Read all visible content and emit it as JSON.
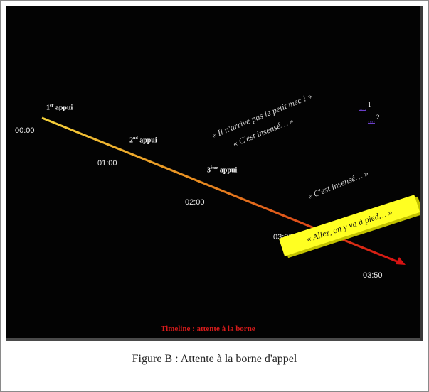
{
  "slide": {
    "background_color": "#030303",
    "timeline": {
      "start_color": "#f4d13a",
      "end_color": "#d61212",
      "times": [
        "00:00",
        "01:00",
        "02:00",
        "03:00",
        "03:50"
      ]
    },
    "appuis": [
      {
        "num": "1",
        "sup": "er",
        "text": " appui"
      },
      {
        "num": "2",
        "sup": "nd",
        "text": " appui"
      },
      {
        "num": "3",
        "sup": "ème",
        "text": " appui"
      }
    ],
    "quotes": [
      "« Il n'arrive pas le petit mec ! »",
      "« C'est insensé… »",
      "« C'est insensé… »"
    ],
    "links": [
      {
        "text": "....",
        "num": "1"
      },
      {
        "text": "....",
        "num": "2"
      }
    ],
    "banner": {
      "text": "« Allez, on y va à pied… »",
      "color": "#ffff22"
    },
    "footer_title": "Timeline : attente à la borne"
  },
  "caption": "Figure B : Attente à la borne d'appel"
}
